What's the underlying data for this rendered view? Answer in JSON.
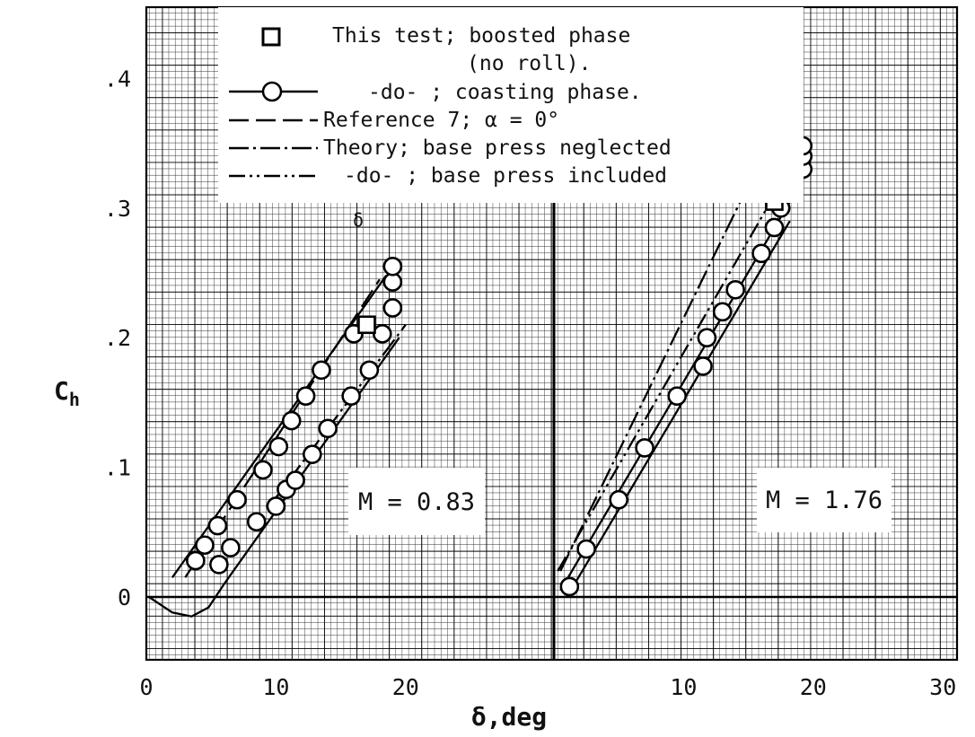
{
  "chart_data": {
    "type": "scatter",
    "ylabel": "Ch",
    "ylabel_main": "C",
    "ylabel_sub": "h",
    "xlabel": "δ,deg",
    "grid": true,
    "y_ticks": [
      {
        "value": 0,
        "label": "0"
      },
      {
        "value": 0.1,
        "label": ".1"
      },
      {
        "value": 0.2,
        "label": ".2"
      },
      {
        "value": 0.3,
        "label": ".3"
      },
      {
        "value": 0.4,
        "label": ".4"
      }
    ],
    "ylim": [
      -0.05,
      0.45
    ],
    "legend": {
      "placement": "top-left",
      "entries": [
        {
          "text": "This test; boosted phase",
          "symbol": "square"
        },
        {
          "text": "(no roll).",
          "symbol": "none"
        },
        {
          "text": "-do-   ; coasting phase.",
          "symbol": "circle-line"
        },
        {
          "text": "Reference 7;  α = 0°",
          "symbol": "dashed"
        },
        {
          "text": "Theory; base press neglected",
          "symbol": "dash-dot"
        },
        {
          "text": "-do- ; base press included",
          "symbol": "dash-dot-dot"
        }
      ]
    },
    "panels": [
      {
        "name": "M = 0.83",
        "box_label": "M = 0.83",
        "xlim": [
          0,
          25
        ],
        "x_ticks": [
          {
            "value": 0,
            "label": "0"
          },
          {
            "value": 10,
            "label": "10"
          },
          {
            "value": 20,
            "label": "20"
          }
        ],
        "boosted_square": [
          {
            "x": 17.0,
            "y": 0.21
          }
        ],
        "coasting_circles": [
          {
            "x": 3.8,
            "y": 0.028
          },
          {
            "x": 4.5,
            "y": 0.04
          },
          {
            "x": 5.5,
            "y": 0.055
          },
          {
            "x": 5.6,
            "y": 0.025
          },
          {
            "x": 6.5,
            "y": 0.038
          },
          {
            "x": 7.0,
            "y": 0.075
          },
          {
            "x": 8.5,
            "y": 0.058
          },
          {
            "x": 9.0,
            "y": 0.098
          },
          {
            "x": 10.0,
            "y": 0.07
          },
          {
            "x": 10.2,
            "y": 0.116
          },
          {
            "x": 10.8,
            "y": 0.083
          },
          {
            "x": 11.2,
            "y": 0.136
          },
          {
            "x": 11.5,
            "y": 0.09
          },
          {
            "x": 12.3,
            "y": 0.155
          },
          {
            "x": 12.8,
            "y": 0.11
          },
          {
            "x": 13.5,
            "y": 0.175
          },
          {
            "x": 14.0,
            "y": 0.13
          },
          {
            "x": 15.8,
            "y": 0.155
          },
          {
            "x": 16.0,
            "y": 0.203
          },
          {
            "x": 17.2,
            "y": 0.175
          },
          {
            "x": 18.2,
            "y": 0.203
          },
          {
            "x": 19.0,
            "y": 0.223
          },
          {
            "x": 19.0,
            "y": 0.243
          },
          {
            "x": 19.0,
            "y": 0.255
          }
        ],
        "lines": [
          {
            "style": "solid",
            "points": [
              [
                0.2,
                0.0
              ],
              [
                2.0,
                -0.012
              ],
              [
                3.5,
                -0.015
              ],
              [
                4.8,
                -0.008
              ],
              [
                6.0,
                0.01
              ],
              [
                19.5,
                0.2
              ]
            ]
          },
          {
            "style": "solid",
            "points": [
              [
                2.0,
                0.015
              ],
              [
                18.5,
                0.248
              ]
            ]
          },
          {
            "style": "dashed",
            "points": [
              [
                3.0,
                0.015
              ],
              [
                18.0,
                0.245
              ]
            ]
          },
          {
            "style": "dash-dot",
            "points": [
              [
                9.5,
                0.07
              ],
              [
                20.0,
                0.21
              ]
            ]
          }
        ],
        "annotation": "δ"
      },
      {
        "name": "M = 1.76",
        "box_label": "M = 1.76",
        "xlim": [
          0,
          30
        ],
        "x_ticks": [
          {
            "value": 10,
            "label": "10"
          },
          {
            "value": 20,
            "label": "20"
          },
          {
            "value": 30,
            "label": "30"
          }
        ],
        "boosted_square": [
          {
            "x": 17.0,
            "y": 0.305
          }
        ],
        "coasting_circles": [
          {
            "x": 1.2,
            "y": 0.008
          },
          {
            "x": 2.5,
            "y": 0.037
          },
          {
            "x": 5.0,
            "y": 0.075
          },
          {
            "x": 7.0,
            "y": 0.115
          },
          {
            "x": 9.5,
            "y": 0.155
          },
          {
            "x": 11.5,
            "y": 0.178
          },
          {
            "x": 11.8,
            "y": 0.2
          },
          {
            "x": 13.0,
            "y": 0.22
          },
          {
            "x": 14.0,
            "y": 0.237
          },
          {
            "x": 16.0,
            "y": 0.265
          },
          {
            "x": 17.0,
            "y": 0.285
          },
          {
            "x": 17.5,
            "y": 0.3
          },
          {
            "x": 18.0,
            "y": 0.312
          },
          {
            "x": 17.5,
            "y": 0.32
          },
          {
            "x": 18.0,
            "y": 0.333
          },
          {
            "x": 19.2,
            "y": 0.33
          },
          {
            "x": 19.2,
            "y": 0.34
          },
          {
            "x": 19.2,
            "y": 0.348
          }
        ],
        "lines": [
          {
            "style": "solid",
            "points": [
              [
                0.5,
                0.005
              ],
              [
                18.5,
                0.31
              ]
            ]
          },
          {
            "style": "solid",
            "points": [
              [
                1.0,
                0.0
              ],
              [
                18.2,
                0.29
              ]
            ]
          },
          {
            "style": "dash-dot",
            "points": [
              [
                0.5,
                0.02
              ],
              [
                19.0,
                0.4
              ]
            ]
          },
          {
            "style": "dash-dot-dot",
            "points": [
              [
                0.3,
                0.02
              ],
              [
                17.0,
                0.31
              ]
            ]
          }
        ]
      }
    ]
  }
}
